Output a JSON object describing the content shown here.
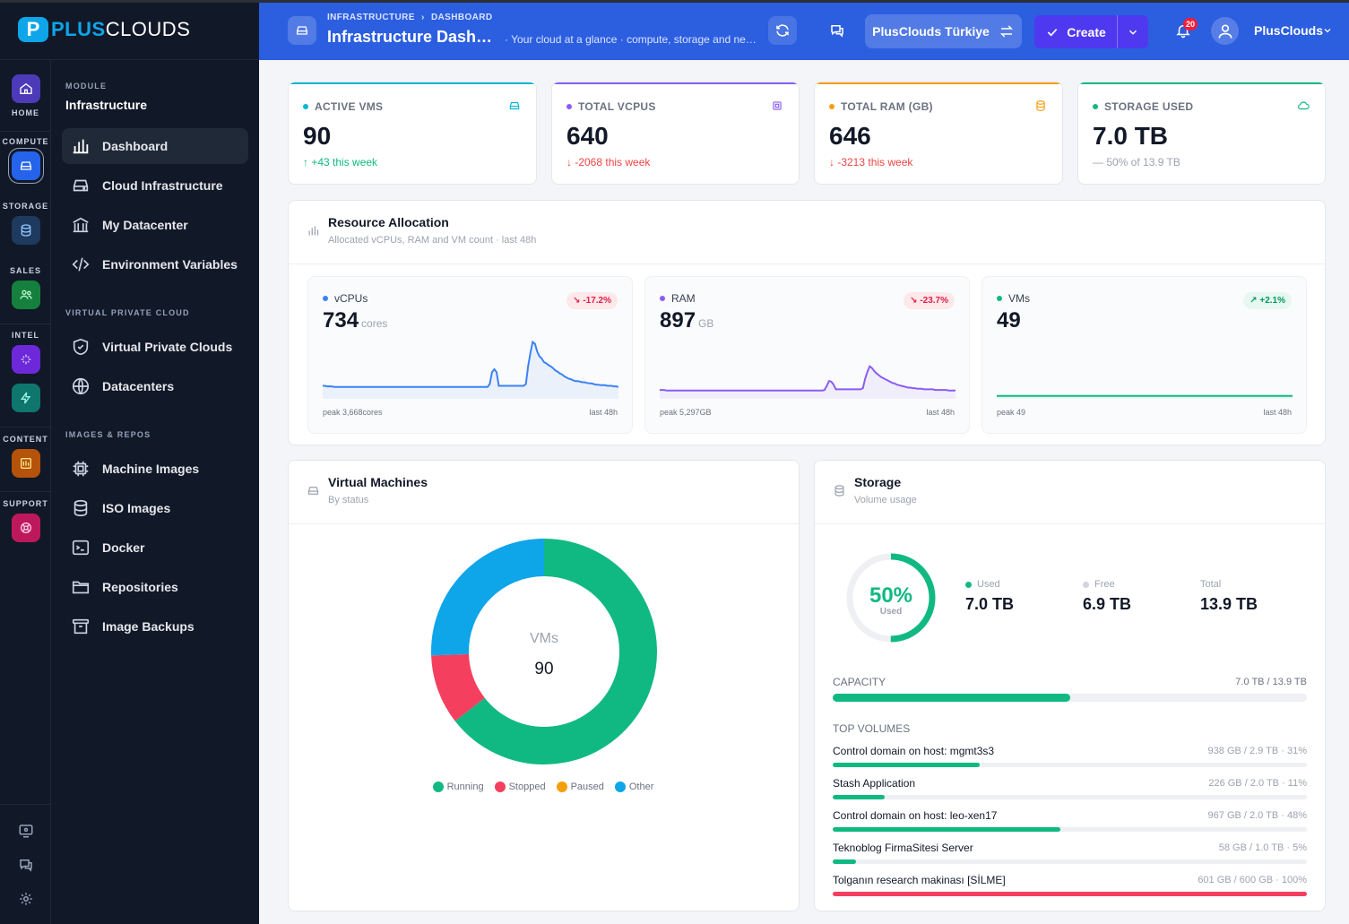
{
  "brand": {
    "name_bold": "PLUS",
    "name_light": "CLOUDS",
    "mark": "P"
  },
  "rail": {
    "home_label": "HOME",
    "groups": [
      {
        "label": "COMPUTE",
        "icon": "server-icon",
        "color": "#2563eb"
      },
      {
        "label": "STORAGE",
        "icon": "database-icon",
        "color": "#1e3a5f"
      },
      {
        "label": "SALES",
        "icon": "users-icon",
        "color": "#15803d"
      },
      {
        "label": "INTEL",
        "icon": "sparkles-icon",
        "color": "#6d28d9"
      },
      {
        "label": "CONTENT",
        "icon": "layout-icon",
        "color": "#b45309"
      },
      {
        "label": "SUPPORT",
        "icon": "lifebuoy-icon",
        "color": "#be185d"
      }
    ]
  },
  "sidebar": {
    "module_label": "MODULE",
    "module_title": "Infrastructure",
    "items": [
      {
        "label": "Dashboard",
        "icon": "bar-chart-icon"
      },
      {
        "label": "Cloud Infrastructure",
        "icon": "server-icon"
      },
      {
        "label": "My Datacenter",
        "icon": "building-icon"
      },
      {
        "label": "Environment Variables",
        "icon": "code-icon"
      }
    ],
    "section_vpc": "VIRTUAL PRIVATE CLOUD",
    "vpc_items": [
      {
        "label": "Virtual Private Clouds",
        "icon": "shield-icon"
      },
      {
        "label": "Datacenters",
        "icon": "globe-icon"
      }
    ],
    "section_images": "IMAGES & REPOS",
    "image_items": [
      {
        "label": "Machine Images",
        "icon": "chip-icon"
      },
      {
        "label": "ISO Images",
        "icon": "database-icon"
      },
      {
        "label": "Docker",
        "icon": "terminal-icon"
      },
      {
        "label": "Repositories",
        "icon": "folder-icon"
      },
      {
        "label": "Image Backups",
        "icon": "archive-icon"
      }
    ]
  },
  "header": {
    "breadcrumb_1": "INFRASTRUCTURE",
    "breadcrumb_sep": "›",
    "breadcrumb_2": "DASHBOARD",
    "title": "Infrastructure Dashboard",
    "subtitle": "· Your cloud at a glance · compute, storage and network",
    "tenant": "PlusClouds Türkiye",
    "create_label": "Create",
    "notifications": "20",
    "user": "PlusClouds"
  },
  "kpis": [
    {
      "label": "ACTIVE VMS",
      "value": "90",
      "delta": "↑ +43 this week",
      "color": "#06b6d4",
      "delta_color": "#10b981",
      "icon": "server-icon"
    },
    {
      "label": "TOTAL VCPUS",
      "value": "640",
      "delta": "↓ -2068 this week",
      "color": "#8b5cf6",
      "delta_color": "#ef4444",
      "icon": "cpu-icon"
    },
    {
      "label": "TOTAL RAM (GB)",
      "value": "646",
      "delta": "↓ -3213 this week",
      "color": "#f59e0b",
      "delta_color": "#ef4444",
      "icon": "database-icon"
    },
    {
      "label": "STORAGE USED",
      "value": "7.0 TB",
      "delta": "— 50% of 13.9 TB",
      "color": "#10b981",
      "delta_color": "#9ca3af",
      "icon": "cloud-icon"
    }
  ],
  "allocation": {
    "title": "Resource Allocation",
    "subtitle": "Allocated vCPUs, RAM and VM count · last 48h",
    "series": [
      {
        "name": "vCPUs",
        "value": "734",
        "unit": "cores",
        "change": "↘ -17.2%",
        "peak": "peak 3,668cores",
        "range": "last 48h",
        "color": "#3b82f6",
        "badge_bg": "#fde8ea",
        "badge_fg": "#e11d48",
        "points": [
          0.22,
          0.22,
          0.21,
          0.21,
          0.21,
          0.2,
          0.2,
          0.2,
          0.2,
          0.2,
          0.2,
          0.2,
          0.2,
          0.2,
          0.2,
          0.2,
          0.2,
          0.2,
          0.2,
          0.2,
          0.2,
          0.2,
          0.2,
          0.2,
          0.2,
          0.2,
          0.2,
          0.2,
          0.2,
          0.2,
          0.2,
          0.2,
          0.2,
          0.2,
          0.2,
          0.2,
          0.2,
          0.2,
          0.2,
          0.2,
          0.2,
          0.2,
          0.2,
          0.2,
          0.2,
          0.2,
          0.2,
          0.2,
          0.2,
          0.2,
          0.2,
          0.2,
          0.2,
          0.2,
          0.2,
          0.2,
          0.2,
          0.2,
          0.2,
          0.2,
          0.2,
          0.2,
          0.2,
          0.2,
          0.2,
          0.2,
          0.2,
          0.2,
          0.2,
          0.2,
          0.2,
          0.2,
          0.2,
          0.2,
          0.25,
          0.45,
          0.5,
          0.45,
          0.22,
          0.22,
          0.22,
          0.22,
          0.22,
          0.22,
          0.22,
          0.22,
          0.22,
          0.22,
          0.22,
          0.22,
          0.25,
          0.55,
          0.78,
          0.96,
          0.93,
          0.8,
          0.72,
          0.68,
          0.62,
          0.6,
          0.57,
          0.55,
          0.52,
          0.48,
          0.46,
          0.43,
          0.41,
          0.38,
          0.36,
          0.34,
          0.33,
          0.31,
          0.3,
          0.3,
          0.29,
          0.28,
          0.28,
          0.27,
          0.26,
          0.26,
          0.25,
          0.24,
          0.24,
          0.23,
          0.23,
          0.23,
          0.22,
          0.22,
          0.22,
          0.21,
          0.21,
          0.2
        ]
      },
      {
        "name": "RAM",
        "value": "897",
        "unit": "GB",
        "change": "↘ -23.7%",
        "peak": "peak 5,297GB",
        "range": "last 48h",
        "color": "#8b5cf6",
        "badge_bg": "#fde8ea",
        "badge_fg": "#e11d48",
        "points": [
          0.15,
          0.15,
          0.15,
          0.14,
          0.14,
          0.14,
          0.14,
          0.14,
          0.14,
          0.14,
          0.14,
          0.14,
          0.14,
          0.14,
          0.14,
          0.14,
          0.14,
          0.14,
          0.14,
          0.14,
          0.14,
          0.14,
          0.14,
          0.14,
          0.14,
          0.14,
          0.14,
          0.14,
          0.14,
          0.14,
          0.14,
          0.14,
          0.14,
          0.14,
          0.14,
          0.14,
          0.14,
          0.14,
          0.14,
          0.14,
          0.14,
          0.14,
          0.14,
          0.14,
          0.14,
          0.14,
          0.14,
          0.14,
          0.14,
          0.14,
          0.14,
          0.14,
          0.14,
          0.14,
          0.14,
          0.14,
          0.14,
          0.14,
          0.14,
          0.14,
          0.14,
          0.14,
          0.14,
          0.14,
          0.14,
          0.14,
          0.14,
          0.14,
          0.14,
          0.14,
          0.14,
          0.14,
          0.14,
          0.15,
          0.22,
          0.3,
          0.29,
          0.24,
          0.16,
          0.16,
          0.16,
          0.16,
          0.16,
          0.16,
          0.16,
          0.16,
          0.16,
          0.16,
          0.16,
          0.16,
          0.18,
          0.34,
          0.46,
          0.55,
          0.52,
          0.47,
          0.43,
          0.4,
          0.37,
          0.35,
          0.33,
          0.31,
          0.29,
          0.27,
          0.26,
          0.24,
          0.23,
          0.22,
          0.21,
          0.2,
          0.19,
          0.19,
          0.18,
          0.18,
          0.17,
          0.17,
          0.17,
          0.16,
          0.16,
          0.16,
          0.16,
          0.16,
          0.15,
          0.15,
          0.15,
          0.15,
          0.15,
          0.15,
          0.14,
          0.14,
          0.14,
          0.14
        ]
      },
      {
        "name": "VMs",
        "value": "49",
        "unit": "",
        "change": "↗ +2.1%",
        "peak": "peak 49",
        "range": "last 48h",
        "color": "#10b981",
        "badge_bg": "#e6f8ef",
        "badge_fg": "#059669",
        "points": [
          0.05,
          0.05,
          0.05,
          0.05,
          0.05,
          0.05,
          0.05,
          0.05,
          0.05,
          0.05,
          0.05,
          0.05,
          0.05,
          0.05,
          0.05,
          0.05,
          0.05,
          0.05,
          0.05,
          0.05,
          0.05,
          0.05,
          0.05,
          0.05,
          0.05,
          0.05,
          0.05,
          0.05,
          0.05,
          0.05,
          0.05,
          0.05,
          0.05,
          0.05,
          0.05,
          0.05,
          0.05,
          0.05,
          0.05,
          0.05,
          0.05,
          0.05,
          0.05,
          0.05,
          0.05,
          0.05,
          0.05,
          0.05,
          0.05,
          0.05,
          0.05,
          0.05,
          0.05,
          0.05,
          0.05,
          0.05,
          0.05,
          0.05,
          0.05,
          0.05,
          0.05,
          0.05,
          0.05,
          0.05,
          0.05,
          0.05,
          0.05,
          0.05,
          0.05,
          0.05,
          0.05,
          0.05,
          0.05,
          0.05,
          0.05,
          0.05,
          0.05,
          0.05,
          0.05,
          0.05,
          0.05,
          0.05,
          0.05,
          0.05,
          0.05,
          0.05,
          0.05,
          0.05,
          0.05,
          0.05,
          0.05,
          0.05,
          0.05,
          0.05,
          0.05,
          0.05,
          0.05,
          0.05,
          0.05,
          0.05,
          0.05,
          0.05,
          0.05,
          0.05,
          0.05,
          0.05,
          0.05,
          0.05,
          0.05,
          0.05,
          0.05,
          0.05,
          0.05,
          0.05,
          0.05,
          0.05,
          0.05,
          0.05,
          0.05,
          0.05,
          0.05,
          0.05,
          0.05,
          0.05,
          0.05,
          0.05,
          0.05,
          0.05,
          0.05,
          0.05,
          0.05,
          0.05,
          0.05,
          0.05
        ]
      }
    ]
  },
  "vms": {
    "title": "Virtual Machines",
    "subtitle": "By status",
    "center_label": "VMs",
    "center_value": "90",
    "segments": [
      {
        "name": "Running",
        "value": 58,
        "color": "#10b981"
      },
      {
        "name": "Stopped",
        "value": 9,
        "color": "#f43f5e"
      },
      {
        "name": "Paused",
        "value": 0,
        "color": "#f59e0b"
      },
      {
        "name": "Other",
        "value": 23,
        "color": "#0ea5e9"
      }
    ]
  },
  "storage": {
    "title": "Storage",
    "subtitle": "Volume usage",
    "ring_value": "50%",
    "ring_label": "Used",
    "ring_fraction": 0.5,
    "used_label": "Used",
    "used": "7.0 TB",
    "free_label": "Free",
    "free": "6.9 TB",
    "total_label": "Total",
    "total": "13.9 TB",
    "capacity_label": "CAPACITY",
    "capacity_text": "7.0 TB / 13.9 TB",
    "capacity_fraction": 0.5,
    "top_label": "TOP VOLUMES",
    "volumes": [
      {
        "name": "Control domain on host: mgmt3s3",
        "meta": "938 GB / 2.9 TB · 31%",
        "fraction": 0.31,
        "color": "#10b981"
      },
      {
        "name": "Stash Application",
        "meta": "226 GB / 2.0 TB · 11%",
        "fraction": 0.11,
        "color": "#10b981"
      },
      {
        "name": "Control domain on host: leo-xen17",
        "meta": "967 GB / 2.0 TB · 48%",
        "fraction": 0.48,
        "color": "#10b981"
      },
      {
        "name": "Teknoblog FirmaSitesi Server",
        "meta": "58 GB / 1.0 TB · 5%",
        "fraction": 0.05,
        "color": "#10b981"
      },
      {
        "name": "Tolganın research makinası [SİLME]",
        "meta": "601 GB / 600 GB · 100%",
        "fraction": 1.0,
        "color": "#f43f5e"
      }
    ]
  }
}
